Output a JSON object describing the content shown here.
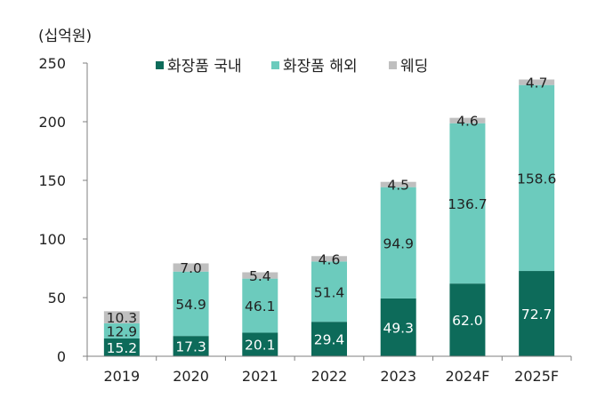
{
  "chart_data": {
    "type": "bar",
    "stacked": true,
    "unit_label": "(십억원)",
    "categories": [
      "2019",
      "2020",
      "2021",
      "2022",
      "2023",
      "2024F",
      "2025F"
    ],
    "series": [
      {
        "name": "화장품 국내",
        "color": "#0d6b5a",
        "label_color": "#ffffff",
        "values": [
          15.2,
          17.3,
          20.1,
          29.4,
          49.3,
          62.0,
          72.7
        ]
      },
      {
        "name": "화장품 해외",
        "color": "#6ccbbd",
        "label_color": "#222222",
        "values": [
          12.9,
          54.9,
          46.1,
          51.4,
          94.9,
          136.7,
          158.6
        ]
      },
      {
        "name": "웨딩",
        "color": "#bfbfbf",
        "label_color": "#222222",
        "values": [
          10.3,
          7.0,
          5.4,
          4.6,
          4.5,
          4.6,
          4.7
        ]
      }
    ],
    "data_labels": [
      [
        "15.2",
        "17.3",
        "20.1",
        "29.4",
        "49.3",
        "62.0",
        "72.7"
      ],
      [
        "12.9",
        "54.9",
        "46.1",
        "51.4",
        "94.9",
        "136.7",
        "158.6"
      ],
      [
        "10.3",
        "7.0",
        "5.4",
        "4.6",
        "4.5",
        "4.6",
        "4.7"
      ]
    ],
    "ylim": [
      0,
      250
    ],
    "yticks": [
      "0",
      "50",
      "100",
      "150",
      "200",
      "250"
    ],
    "grid": false,
    "legend_position": "top"
  }
}
